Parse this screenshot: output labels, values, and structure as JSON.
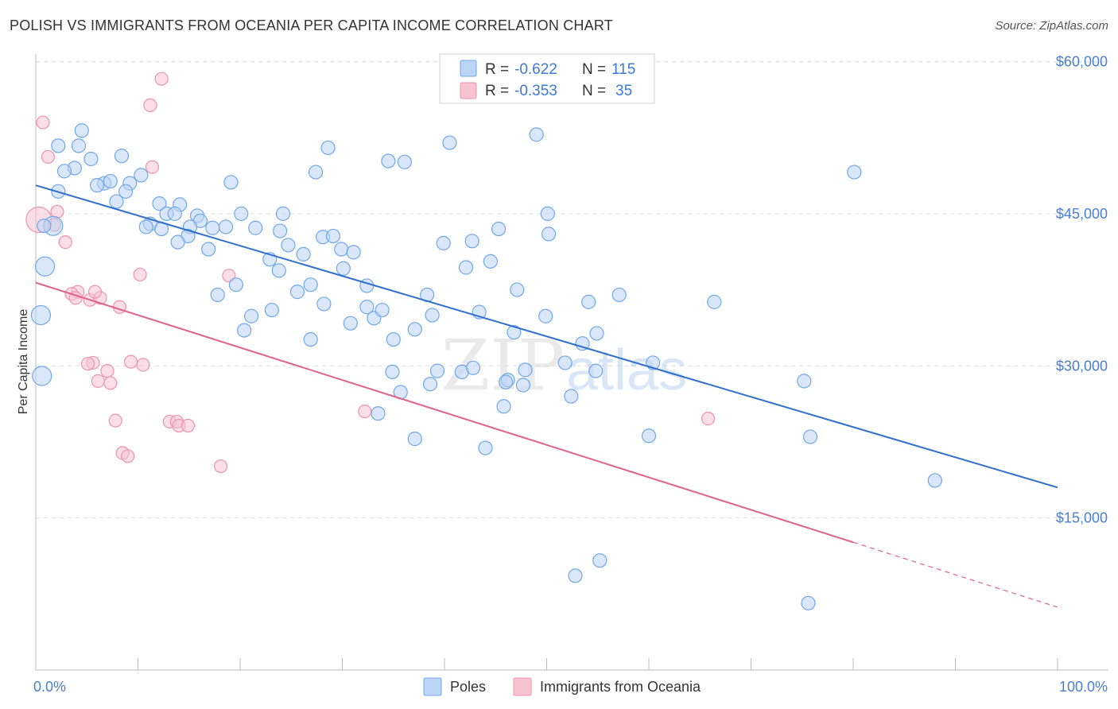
{
  "header": {
    "title": "POLISH VS IMMIGRANTS FROM OCEANIA PER CAPITA INCOME CORRELATION CHART",
    "source": "Source: ZipAtlas.com"
  },
  "watermark": {
    "zip": "ZIP",
    "atlas": "atlas"
  },
  "chart_data": {
    "type": "scatter",
    "title": "POLISH VS IMMIGRANTS FROM OCEANIA PER CAPITA INCOME CORRELATION CHART",
    "ylabel": "Per Capita Income",
    "xlim": [
      0,
      100
    ],
    "ylim": [
      0,
      63000
    ],
    "x_tick_labels": [
      "0.0%",
      "100.0%"
    ],
    "y_ticks": [
      15000,
      30000,
      45000,
      60000
    ],
    "y_tick_labels": [
      "$15,000",
      "$30,000",
      "$45,000",
      "$60,000"
    ],
    "grid": "horizontal dashed",
    "legend_position": "top-center",
    "stats": [
      {
        "series": "Poles",
        "r_label": "R = ",
        "r": "-0.622",
        "n_label": "N = ",
        "n": "115"
      },
      {
        "series": "Immigrants from Oceania",
        "r_label": "R = ",
        "r": "-0.353",
        "n_label": "N = ",
        "n": "35"
      }
    ],
    "series": [
      {
        "name": "Poles",
        "color": "#6fa8e8",
        "fill": "#bcd4f5",
        "trend": {
          "x0": 0,
          "y0": 47800,
          "x1": 100,
          "y1": 18000,
          "line_color": "#2e6fce"
        },
        "points": [
          [
            4.5,
            53200
          ],
          [
            2.2,
            51700
          ],
          [
            4.2,
            51700
          ],
          [
            5.4,
            50400
          ],
          [
            8.4,
            50700
          ],
          [
            3.8,
            49500
          ],
          [
            2.8,
            49200
          ],
          [
            10.3,
            48800
          ],
          [
            6.7,
            48000
          ],
          [
            9.2,
            48000
          ],
          [
            7.3,
            48200
          ],
          [
            6.0,
            47800
          ],
          [
            2.2,
            47200
          ],
          [
            8.8,
            47200
          ],
          [
            12.1,
            46000
          ],
          [
            7.9,
            46200
          ],
          [
            14.1,
            45900
          ],
          [
            12.8,
            45000
          ],
          [
            13.6,
            45000
          ],
          [
            15.8,
            44800
          ],
          [
            16.1,
            44300
          ],
          [
            11.2,
            44000
          ],
          [
            1.7,
            43800
          ],
          [
            10.8,
            43700
          ],
          [
            12.3,
            43500
          ],
          [
            15.1,
            43700
          ],
          [
            17.3,
            43600
          ],
          [
            18.6,
            43700
          ],
          [
            21.5,
            43600
          ],
          [
            20.1,
            45000
          ],
          [
            24.2,
            45000
          ],
          [
            23.9,
            43300
          ],
          [
            14.9,
            42800
          ],
          [
            24.7,
            41900
          ],
          [
            26.2,
            41000
          ],
          [
            13.9,
            42200
          ],
          [
            16.9,
            41500
          ],
          [
            28.1,
            42700
          ],
          [
            29.1,
            42800
          ],
          [
            29.9,
            41500
          ],
          [
            31.1,
            41200
          ],
          [
            19.1,
            48100
          ],
          [
            22.9,
            40500
          ],
          [
            30.1,
            39600
          ],
          [
            23.8,
            39400
          ],
          [
            25.6,
            37300
          ],
          [
            17.8,
            37000
          ],
          [
            26.9,
            38000
          ],
          [
            19.6,
            38000
          ],
          [
            32.4,
            37900
          ],
          [
            21.1,
            34900
          ],
          [
            20.4,
            33500
          ],
          [
            23.1,
            35500
          ],
          [
            26.9,
            32600
          ],
          [
            28.2,
            36100
          ],
          [
            30.8,
            34200
          ],
          [
            32.4,
            35800
          ],
          [
            33.1,
            34700
          ],
          [
            33.9,
            35500
          ],
          [
            35.0,
            32600
          ],
          [
            35.7,
            27400
          ],
          [
            34.9,
            29400
          ],
          [
            37.1,
            33600
          ],
          [
            38.3,
            37000
          ],
          [
            38.8,
            35000
          ],
          [
            39.3,
            29500
          ],
          [
            38.6,
            28200
          ],
          [
            37.1,
            22800
          ],
          [
            39.9,
            42100
          ],
          [
            40.5,
            52000
          ],
          [
            42.1,
            39700
          ],
          [
            42.7,
            42300
          ],
          [
            43.4,
            35300
          ],
          [
            44.5,
            40300
          ],
          [
            45.3,
            43500
          ],
          [
            41.7,
            29400
          ],
          [
            44.0,
            21900
          ],
          [
            47.1,
            37500
          ],
          [
            45.8,
            26000
          ],
          [
            46.2,
            28600
          ],
          [
            46.8,
            33300
          ],
          [
            47.7,
            28100
          ],
          [
            47.9,
            29600
          ],
          [
            49.9,
            34900
          ],
          [
            49.0,
            52800
          ],
          [
            50.1,
            45000
          ],
          [
            50.2,
            43000
          ],
          [
            51.8,
            30300
          ],
          [
            52.4,
            27000
          ],
          [
            53.5,
            32200
          ],
          [
            54.1,
            36300
          ],
          [
            54.9,
            33200
          ],
          [
            54.8,
            29500
          ],
          [
            57.1,
            37000
          ],
          [
            60.4,
            30300
          ],
          [
            60.0,
            23100
          ],
          [
            66.4,
            36300
          ],
          [
            75.2,
            28500
          ],
          [
            75.8,
            23000
          ],
          [
            80.1,
            49100
          ],
          [
            88.0,
            18700
          ],
          [
            52.8,
            9300
          ],
          [
            55.2,
            10800
          ],
          [
            75.6,
            6600
          ],
          [
            34.5,
            50200
          ],
          [
            36.1,
            50100
          ],
          [
            28.6,
            51500
          ],
          [
            27.4,
            49100
          ],
          [
            0.8,
            43800
          ],
          [
            0.6,
            29000
          ],
          [
            0.5,
            35000
          ],
          [
            0.9,
            39800
          ],
          [
            42.8,
            29800
          ],
          [
            46.0,
            28400
          ],
          [
            33.5,
            25300
          ]
        ],
        "point_sizes": {
          "large": [
            [
              0.9,
              39800
            ],
            [
              0.5,
              35000
            ],
            [
              0.6,
              29000
            ],
            [
              1.7,
              43800
            ]
          ]
        }
      },
      {
        "name": "Immigrants from Oceania",
        "color": "#ec93ad",
        "fill": "#f7c3d3",
        "trend": {
          "x0": 0,
          "y0": 38200,
          "x1": 80,
          "y1": 12600,
          "dash_to": {
            "x": 100,
            "y": 6200
          },
          "line_color": "#e0628a"
        },
        "points": [
          [
            0.3,
            44400
          ],
          [
            0.7,
            54000
          ],
          [
            1.2,
            50600
          ],
          [
            1.8,
            43900
          ],
          [
            2.1,
            45200
          ],
          [
            2.9,
            42200
          ],
          [
            4.1,
            37300
          ],
          [
            3.5,
            37100
          ],
          [
            3.9,
            36700
          ],
          [
            5.3,
            36500
          ],
          [
            6.3,
            36700
          ],
          [
            5.8,
            37300
          ],
          [
            8.2,
            35800
          ],
          [
            10.2,
            39000
          ],
          [
            11.4,
            49600
          ],
          [
            12.3,
            58300
          ],
          [
            11.2,
            55700
          ],
          [
            18.9,
            38900
          ],
          [
            5.6,
            30300
          ],
          [
            5.1,
            30200
          ],
          [
            7.0,
            29500
          ],
          [
            6.1,
            28500
          ],
          [
            7.3,
            28300
          ],
          [
            9.3,
            30400
          ],
          [
            10.5,
            30100
          ],
          [
            7.8,
            24600
          ],
          [
            8.5,
            21400
          ],
          [
            9.0,
            21100
          ],
          [
            13.1,
            24500
          ],
          [
            13.8,
            24500
          ],
          [
            14.0,
            24100
          ],
          [
            14.9,
            24100
          ],
          [
            18.1,
            20100
          ],
          [
            32.2,
            25500
          ],
          [
            65.8,
            24800
          ]
        ]
      }
    ]
  }
}
